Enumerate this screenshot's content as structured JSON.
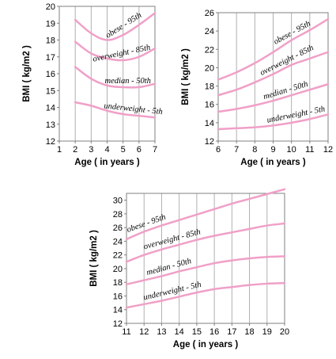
{
  "chart_data": [
    {
      "type": "line",
      "xlabel": "Age ( in years )",
      "ylabel": "BMI ( kg/m2 )",
      "xlim": [
        1,
        7
      ],
      "ylim": [
        12,
        20
      ],
      "x_ticks": [
        "1",
        "2",
        "3",
        "4",
        "5",
        "6",
        "7"
      ],
      "y_ticks": [
        "12",
        "13",
        "14",
        "15",
        "16",
        "17",
        "18",
        "19",
        "20"
      ],
      "grid": "vertical",
      "color": "#f0a0c8",
      "series": [
        {
          "name": "obese - 95th",
          "x": [
            2,
            3,
            4,
            5,
            6,
            7
          ],
          "values": [
            19.2,
            18.4,
            18.0,
            18.3,
            18.9,
            19.6
          ]
        },
        {
          "name": "overweight - 85th",
          "x": [
            2,
            3,
            4,
            5,
            6,
            7
          ],
          "values": [
            17.9,
            17.2,
            16.9,
            16.8,
            17.0,
            17.5
          ]
        },
        {
          "name": "median - 50th",
          "x": [
            2,
            3,
            4,
            5,
            6,
            7
          ],
          "values": [
            16.4,
            15.7,
            15.3,
            15.2,
            15.2,
            15.4
          ]
        },
        {
          "name": "underweight - 5th",
          "x": [
            2,
            3,
            4,
            5,
            6,
            7
          ],
          "values": [
            14.3,
            14.1,
            13.8,
            13.6,
            13.5,
            13.4
          ]
        }
      ]
    },
    {
      "type": "line",
      "xlabel": "Age ( in years )",
      "ylabel": "BMI ( kg/m2 )",
      "xlim": [
        6,
        12
      ],
      "ylim": [
        12,
        26
      ],
      "x_ticks": [
        "6",
        "7",
        "8",
        "9",
        "10",
        "11",
        "12"
      ],
      "y_ticks": [
        "12",
        "14",
        "16",
        "18",
        "20",
        "22",
        "24",
        "26"
      ],
      "grid": "vertical",
      "color": "#f0a0c8",
      "series": [
        {
          "name": "obese - 95th",
          "x": [
            6,
            7,
            8,
            9,
            10,
            11,
            12
          ],
          "values": [
            18.7,
            19.5,
            20.5,
            21.7,
            23.0,
            24.1,
            25.3
          ]
        },
        {
          "name": "overweight - 85th",
          "x": [
            6,
            7,
            8,
            9,
            10,
            11,
            12
          ],
          "values": [
            17.0,
            17.6,
            18.4,
            19.3,
            20.3,
            21.0,
            21.7
          ]
        },
        {
          "name": "median - 50th",
          "x": [
            6,
            7,
            8,
            9,
            10,
            11,
            12
          ],
          "values": [
            15.2,
            15.5,
            15.9,
            16.4,
            17.0,
            17.6,
            18.2
          ]
        },
        {
          "name": "underweight - 5th",
          "x": [
            6,
            7,
            8,
            9,
            10,
            11,
            12
          ],
          "values": [
            13.3,
            13.4,
            13.5,
            13.7,
            14.0,
            14.4,
            14.9
          ]
        }
      ]
    },
    {
      "type": "line",
      "xlabel": "Age ( in years )",
      "ylabel": "BMI ( kg/m2 )",
      "xlim": [
        11,
        20
      ],
      "ylim": [
        12,
        31
      ],
      "x_ticks": [
        "11",
        "12",
        "13",
        "14",
        "15",
        "16",
        "17",
        "18",
        "19",
        "20"
      ],
      "y_ticks": [
        "12",
        "14",
        "16",
        "18",
        "20",
        "22",
        "24",
        "26",
        "28",
        "30"
      ],
      "grid": "vertical",
      "color": "#f0a0c8",
      "series": [
        {
          "name": "obese - 95th",
          "x": [
            11,
            12,
            13,
            14,
            15,
            16,
            17,
            18,
            19,
            20
          ],
          "values": [
            24.3,
            25.4,
            26.3,
            27.1,
            27.9,
            28.7,
            29.5,
            30.2,
            30.9,
            31.6
          ]
        },
        {
          "name": "overweight - 85th",
          "x": [
            11,
            12,
            13,
            14,
            15,
            16,
            17,
            18,
            19,
            20
          ],
          "values": [
            21.0,
            22.0,
            22.8,
            23.5,
            24.2,
            24.8,
            25.3,
            25.8,
            26.3,
            26.6
          ]
        },
        {
          "name": "median - 50th",
          "x": [
            11,
            12,
            13,
            14,
            15,
            16,
            17,
            18,
            19,
            20
          ],
          "values": [
            17.7,
            18.3,
            18.9,
            19.6,
            20.2,
            20.8,
            21.2,
            21.5,
            21.7,
            21.8
          ]
        },
        {
          "name": "underweight - 5th",
          "x": [
            11,
            12,
            13,
            14,
            15,
            16,
            17,
            18,
            19,
            20
          ],
          "values": [
            14.3,
            14.8,
            15.3,
            15.9,
            16.5,
            17.0,
            17.3,
            17.6,
            17.8,
            17.9
          ]
        }
      ]
    }
  ]
}
